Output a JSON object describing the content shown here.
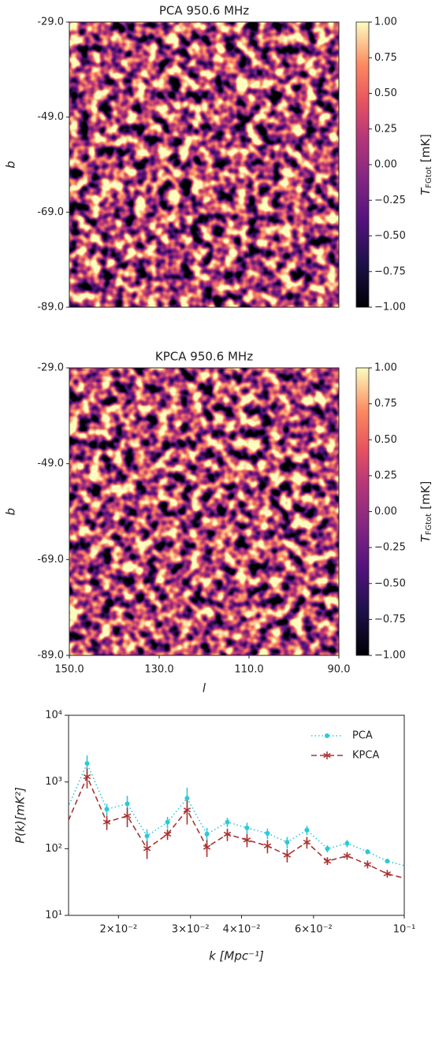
{
  "chart_data": [
    {
      "type": "heatmap",
      "title": "PCA 950.6 MHz",
      "ylabel": "b",
      "colormap": "magma",
      "ylim": [
        -89,
        -29
      ],
      "yticks": [
        {
          "value": -29,
          "label": "-29.0"
        },
        {
          "value": -49,
          "label": "-49.0"
        },
        {
          "value": -69,
          "label": "-69.0"
        },
        {
          "value": -89,
          "label": "-89.0"
        }
      ],
      "colorbar_label": {
        "symbol": "T",
        "subscript": "FGtot",
        "unit": "[mK]"
      },
      "clim": [
        -1,
        1
      ],
      "cticks": [
        {
          "value": 1,
          "label": "1.00"
        },
        {
          "value": 0.75,
          "label": "0.75"
        },
        {
          "value": 0.5,
          "label": "0.50"
        },
        {
          "value": 0.25,
          "label": "0.25"
        },
        {
          "value": 0,
          "label": "0.00"
        },
        {
          "value": -0.25,
          "label": "−0.25"
        },
        {
          "value": -0.5,
          "label": "−0.50"
        },
        {
          "value": -0.75,
          "label": "−0.75"
        },
        {
          "value": -1,
          "label": "−1.00"
        }
      ]
    },
    {
      "type": "heatmap",
      "title": "KPCA 950.6 MHz",
      "ylabel": "b",
      "xlabel": "l",
      "colormap": "magma",
      "xlim": [
        150,
        90
      ],
      "ylim": [
        -89,
        -29
      ],
      "xticks": [
        {
          "value": 150,
          "label": "150.0"
        },
        {
          "value": 130,
          "label": "130.0"
        },
        {
          "value": 110,
          "label": "110.0"
        },
        {
          "value": 90,
          "label": "90.0"
        }
      ],
      "yticks": [
        {
          "value": -29,
          "label": "-29.0"
        },
        {
          "value": -49,
          "label": "-49.0"
        },
        {
          "value": -69,
          "label": "-69.0"
        },
        {
          "value": -89,
          "label": "-89.0"
        }
      ],
      "colorbar_label": {
        "symbol": "T",
        "subscript": "FGtot",
        "unit": "[mK]"
      },
      "clim": [
        -1,
        1
      ],
      "cticks": [
        {
          "value": 1,
          "label": "1.00"
        },
        {
          "value": 0.75,
          "label": "0.75"
        },
        {
          "value": 0.5,
          "label": "0.50"
        },
        {
          "value": 0.25,
          "label": "0.25"
        },
        {
          "value": 0,
          "label": "0.00"
        },
        {
          "value": -0.25,
          "label": "−0.25"
        },
        {
          "value": -0.5,
          "label": "−0.50"
        },
        {
          "value": -0.75,
          "label": "−0.75"
        },
        {
          "value": -1,
          "label": "−1.00"
        }
      ]
    },
    {
      "type": "line",
      "xlabel": "k [Mpc⁻¹]",
      "ylabel": "P(k)[mK²]",
      "xscale": "log",
      "yscale": "log",
      "legend": "upper right",
      "xlim": [
        0.0151,
        0.1
      ],
      "ylim": [
        10,
        10000
      ],
      "xticks": [
        {
          "value": 0.02,
          "label": "2×10⁻²"
        },
        {
          "value": 0.03,
          "label": "3×10⁻²"
        },
        {
          "value": 0.04,
          "label": "4×10⁻²"
        },
        {
          "value": 0.06,
          "label": "6×10⁻²"
        },
        {
          "value": 0.1,
          "label": "10⁻¹"
        }
      ],
      "yticks": [
        {
          "value": 10,
          "label": "10¹"
        },
        {
          "value": 100,
          "label": "10²"
        },
        {
          "value": 1000,
          "label": "10³"
        },
        {
          "value": 10000,
          "label": "10⁴"
        }
      ],
      "x": [
        0.0148,
        0.01676,
        0.01873,
        0.02102,
        0.02349,
        0.02636,
        0.02944,
        0.03291,
        0.03693,
        0.04125,
        0.04629,
        0.05172,
        0.05779,
        0.06486,
        0.07247,
        0.08133,
        0.09087,
        0.102
      ],
      "series": [
        {
          "name": "PCA",
          "color": "#2ec8d8",
          "linestyle": "dotted",
          "marker": "dot",
          "values": [
            330,
            1900,
            390,
            470,
            155,
            250,
            570,
            165,
            250,
            205,
            170,
            125,
            190,
            100,
            120,
            90,
            65,
            54
          ],
          "errors": [
            null,
            600,
            80,
            150,
            40,
            50,
            250,
            40,
            40,
            40,
            30,
            25,
            30,
            12,
            15,
            8,
            5,
            null
          ]
        },
        {
          "name": "KPCA",
          "color": "#a83434",
          "linestyle": "dashed",
          "marker": "star",
          "values": [
            200,
            1200,
            250,
            310,
            100,
            165,
            380,
            105,
            165,
            135,
            110,
            80,
            125,
            65,
            78,
            58,
            42,
            35
          ],
          "errors": [
            null,
            400,
            60,
            100,
            30,
            30,
            150,
            30,
            35,
            30,
            25,
            18,
            25,
            8,
            8,
            6,
            4,
            null
          ]
        }
      ]
    }
  ]
}
